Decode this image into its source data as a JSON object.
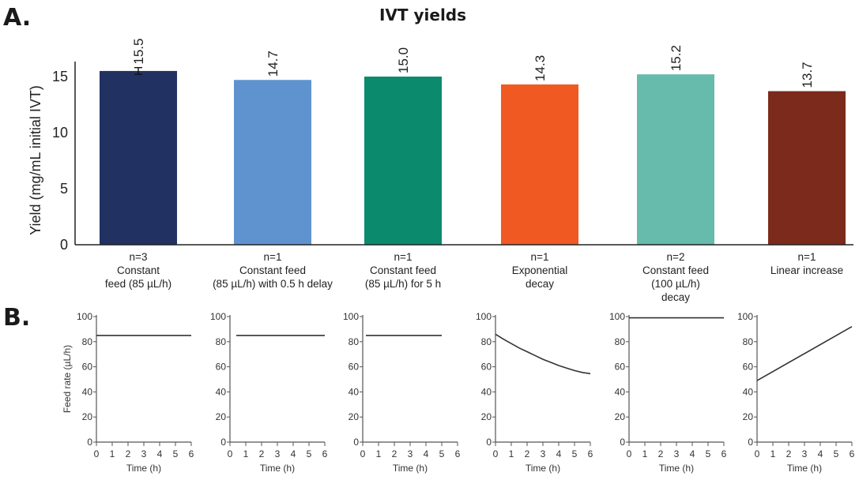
{
  "panel_a_letter": "A.",
  "panel_b_letter": "B.",
  "chart_data": [
    {
      "type": "bar",
      "title": "IVT yields",
      "xlabel": "",
      "ylabel": "Yield (mg/mL initial IVT)",
      "ylim": [
        0,
        16
      ],
      "yticks": [
        0,
        5,
        10,
        15
      ],
      "grid": false,
      "categories": [
        [
          "n=3",
          "Constant",
          "feed (85 µL/h)"
        ],
        [
          "n=1",
          "Constant feed",
          "(85 µL/h) with 0.5 h delay"
        ],
        [
          "n=1",
          "Constant feed",
          "(85 µL/h) for 5 h"
        ],
        [
          "n=1",
          "Exponential",
          "decay"
        ],
        [
          "n=2",
          "Constant feed",
          "(100 µL/h)",
          "decay"
        ],
        [
          "n=1",
          "Linear increase"
        ]
      ],
      "values": [
        15.5,
        14.7,
        15.0,
        14.3,
        15.2,
        13.7
      ],
      "value_labels": [
        "15.5",
        "14.7",
        "15.0",
        "14.3",
        "15.2",
        "13.7"
      ],
      "error_bars": [
        0.3,
        null,
        null,
        null,
        null,
        null
      ],
      "colors": [
        "#213262",
        "#5f93cf",
        "#0b8a6e",
        "#f05a22",
        "#66bbad",
        "#7b2a1b"
      ]
    },
    {
      "type": "line",
      "title": "",
      "xlabel": "Time (h)",
      "ylabel": "Feed rate (µL/h)",
      "xlim": [
        0,
        6
      ],
      "ylim": [
        0,
        100
      ],
      "xticks": [
        0,
        1,
        2,
        3,
        4,
        5,
        6
      ],
      "yticks": [
        0,
        20,
        40,
        60,
        80,
        100
      ],
      "line_color": "#333333",
      "panels": [
        {
          "name": "Constant feed (85 µL/h)",
          "x": [
            0,
            6
          ],
          "y": [
            85,
            85
          ]
        },
        {
          "name": "Constant feed (85 µL/h) with 0.5 h delay",
          "x": [
            0.4,
            6
          ],
          "y": [
            85,
            85
          ]
        },
        {
          "name": "Constant feed (85 µL/h) for 5 h",
          "x": [
            0.2,
            5
          ],
          "y": [
            85,
            85
          ]
        },
        {
          "name": "Exponential decay",
          "x": [
            0,
            0.5,
            1,
            1.5,
            2,
            2.5,
            3,
            3.5,
            4,
            4.5,
            5,
            5.5,
            6
          ],
          "y": [
            86,
            82,
            78.5,
            75,
            72,
            69,
            66,
            63.5,
            61,
            59,
            57,
            55.5,
            54.5
          ]
        },
        {
          "name": "Constant feed (100 µL/h) decay",
          "x": [
            0,
            6
          ],
          "y": [
            99,
            99
          ]
        },
        {
          "name": "Linear increase",
          "x": [
            0,
            6
          ],
          "y": [
            49,
            92
          ]
        }
      ]
    }
  ]
}
